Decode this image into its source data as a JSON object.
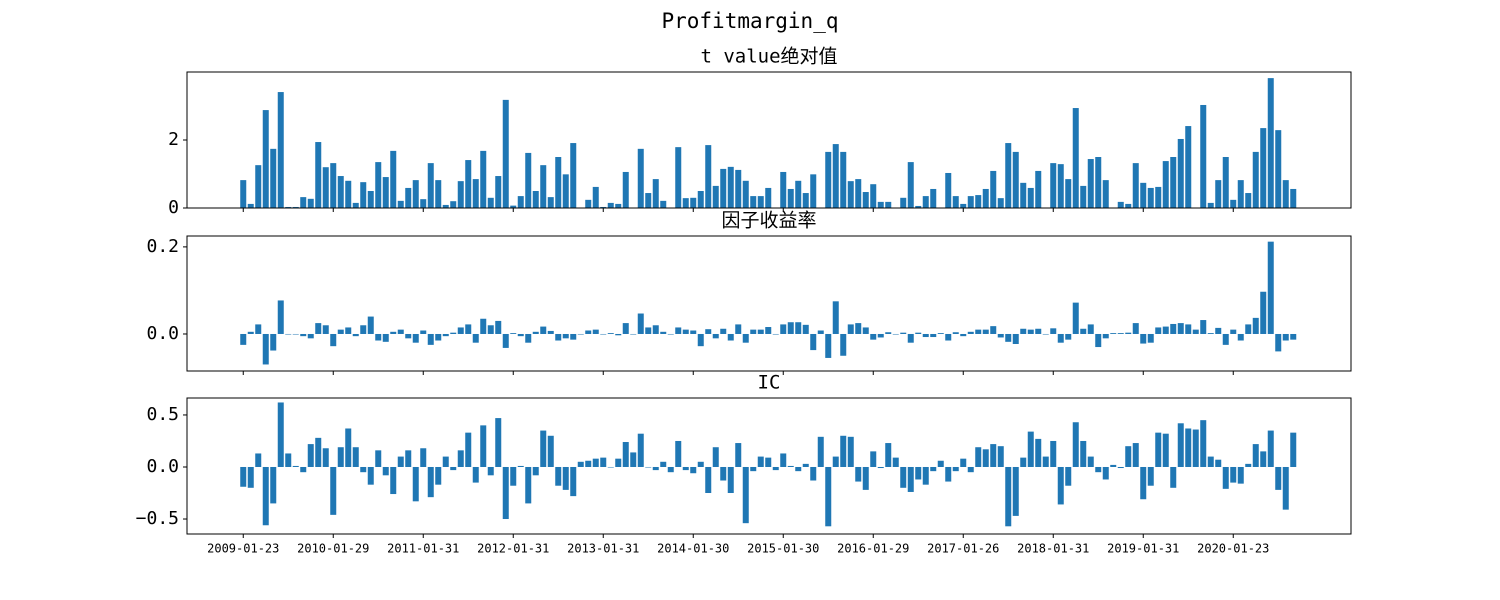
{
  "title": "Profitmargin_q",
  "chart_data": [
    {
      "type": "bar",
      "title": "t value绝对值",
      "color": "#1f77b4",
      "xlim": [
        -7.5,
        147.7
      ],
      "ylim": [
        0,
        4.0
      ],
      "yticks": [
        0,
        2
      ],
      "values": [
        0.82,
        0.12,
        1.26,
        2.88,
        1.74,
        3.41,
        0.03,
        0.03,
        0.32,
        0.27,
        1.94,
        1.2,
        1.32,
        0.94,
        0.8,
        0.15,
        0.76,
        0.5,
        1.35,
        0.91,
        1.68,
        0.21,
        0.59,
        0.82,
        0.26,
        1.32,
        0.82,
        0.09,
        0.2,
        0.79,
        1.41,
        0.85,
        1.68,
        0.3,
        0.94,
        3.18,
        0.07,
        0.35,
        1.62,
        0.5,
        1.26,
        0.32,
        1.5,
        0.99,
        1.91,
        0.01,
        0.24,
        0.62,
        0.03,
        0.15,
        0.12,
        1.06,
        0.01,
        1.74,
        0.44,
        0.85,
        0.21,
        0.01,
        1.79,
        0.29,
        0.3,
        0.5,
        1.85,
        0.65,
        1.15,
        1.21,
        1.12,
        0.8,
        0.35,
        0.35,
        0.59,
        0.01,
        1.06,
        0.56,
        0.8,
        0.44,
        0.99,
        0.01,
        1.65,
        1.88,
        1.65,
        0.79,
        0.85,
        0.47,
        0.7,
        0.18,
        0.18,
        0.01,
        0.3,
        1.35,
        0.06,
        0.35,
        0.56,
        0.01,
        1.03,
        0.35,
        0.12,
        0.35,
        0.38,
        0.56,
        1.09,
        0.29,
        1.91,
        1.65,
        0.74,
        0.59,
        1.09,
        0.01,
        1.32,
        1.29,
        0.85,
        2.94,
        0.65,
        1.44,
        1.5,
        0.82,
        0.01,
        0.18,
        0.12,
        1.32,
        0.74,
        0.59,
        0.62,
        1.38,
        1.5,
        2.03,
        2.41,
        0.01,
        3.03,
        0.15,
        0.82,
        1.5,
        0.24,
        0.82,
        0.44,
        1.65,
        2.35,
        3.82,
        2.29,
        0.82,
        0.56
      ]
    },
    {
      "type": "bar",
      "title": "因子收益率",
      "color": "#1f77b4",
      "xlim": [
        -7.5,
        147.7
      ],
      "ylim": [
        -0.085,
        0.225
      ],
      "yticks": [
        {
          "value": 0,
          "label": "0.0"
        },
        0.2
      ],
      "values": [
        -0.025,
        0.005,
        0.022,
        -0.07,
        -0.038,
        0.077,
        0,
        0,
        -0.005,
        -0.01,
        0.025,
        0.02,
        -0.028,
        0.01,
        0.015,
        -0.005,
        0.02,
        0.04,
        -0.015,
        -0.018,
        0.005,
        0.01,
        -0.01,
        -0.02,
        0.008,
        -0.025,
        -0.015,
        -0.005,
        0.003,
        0.015,
        0.022,
        -0.02,
        0.035,
        0.02,
        0.03,
        -0.032,
        0.002,
        -0.005,
        -0.02,
        0.005,
        0.017,
        0.007,
        -0.015,
        -0.01,
        -0.013,
        0,
        0.008,
        0.01,
        0,
        0.002,
        -0.003,
        0.025,
        0,
        0.047,
        0.015,
        0.02,
        0.005,
        0,
        0.015,
        0.01,
        0.008,
        -0.028,
        0.011,
        -0.01,
        0.012,
        -0.015,
        0.022,
        -0.02,
        0.01,
        0.01,
        0.016,
        0,
        0.022,
        0.027,
        0.027,
        0.021,
        -0.037,
        0.008,
        -0.055,
        0.075,
        -0.05,
        0.022,
        0.025,
        0.015,
        -0.013,
        -0.008,
        0.004,
        0,
        0.003,
        -0.02,
        0.003,
        -0.007,
        -0.007,
        0.002,
        -0.015,
        0.004,
        -0.005,
        0.005,
        0.01,
        0.01,
        0.018,
        -0.008,
        -0.018,
        -0.023,
        0.012,
        0.01,
        0.012,
        0,
        0.013,
        -0.02,
        -0.013,
        0.072,
        0.012,
        0.022,
        -0.03,
        -0.01,
        0.002,
        0.002,
        0.003,
        0.025,
        -0.022,
        -0.02,
        0.015,
        0.017,
        0.023,
        0.025,
        0.022,
        0.01,
        0.032,
        0.002,
        0.014,
        -0.025,
        0.01,
        -0.015,
        0.022,
        0.037,
        0.097,
        0.212,
        -0.04,
        -0.015,
        -0.013
      ]
    },
    {
      "type": "bar",
      "title": "IC",
      "color": "#1f77b4",
      "xlim": [
        -7.5,
        147.7
      ],
      "ylim": [
        -0.644,
        0.663
      ],
      "yticks": [
        {
          "value": -0.5,
          "label": "−0.5"
        },
        {
          "value": 0,
          "label": "0.0"
        },
        0.5
      ],
      "categories": [
        "2009-01-23",
        null,
        null,
        null,
        null,
        null,
        null,
        null,
        null,
        null,
        null,
        null,
        "2010-01-29",
        null,
        null,
        null,
        null,
        null,
        null,
        null,
        null,
        null,
        null,
        null,
        "2011-01-31",
        null,
        null,
        null,
        null,
        null,
        null,
        null,
        null,
        null,
        null,
        null,
        "2012-01-31",
        null,
        null,
        null,
        null,
        null,
        null,
        null,
        null,
        null,
        null,
        null,
        "2013-01-31",
        null,
        null,
        null,
        null,
        null,
        null,
        null,
        null,
        null,
        null,
        null,
        "2014-01-30",
        null,
        null,
        null,
        null,
        null,
        null,
        null,
        null,
        null,
        null,
        null,
        "2015-01-30",
        null,
        null,
        null,
        null,
        null,
        null,
        null,
        null,
        null,
        null,
        null,
        "2016-01-29",
        null,
        null,
        null,
        null,
        null,
        null,
        null,
        null,
        null,
        null,
        null,
        "2017-01-26",
        null,
        null,
        null,
        null,
        null,
        null,
        null,
        null,
        null,
        null,
        null,
        "2018-01-31",
        null,
        null,
        null,
        null,
        null,
        null,
        null,
        null,
        null,
        null,
        null,
        "2019-01-31",
        null,
        null,
        null,
        null,
        null,
        null,
        null,
        null,
        null,
        null,
        null,
        "2020-01-23",
        null,
        null,
        null,
        null,
        null,
        null,
        null,
        null
      ],
      "values": [
        -0.19,
        -0.2,
        0.13,
        -0.56,
        -0.35,
        0.62,
        0.13,
        0.01,
        -0.05,
        0.22,
        0.28,
        0.18,
        -0.46,
        0.19,
        0.37,
        0.19,
        -0.05,
        -0.17,
        0.16,
        -0.08,
        -0.26,
        0.1,
        0.16,
        -0.33,
        0.18,
        -0.29,
        -0.17,
        0.1,
        -0.03,
        0.16,
        0.33,
        -0.15,
        0.4,
        -0.08,
        0.47,
        -0.5,
        -0.18,
        0.01,
        -0.35,
        -0.08,
        0.35,
        0.3,
        -0.18,
        -0.22,
        -0.28,
        0.05,
        0.06,
        0.08,
        0.09,
        0,
        0.08,
        0.24,
        0.14,
        0.32,
        0,
        -0.03,
        0.05,
        -0.05,
        0.25,
        -0.03,
        -0.06,
        0.05,
        -0.25,
        0.19,
        -0.13,
        -0.25,
        0.23,
        -0.54,
        -0.04,
        0.1,
        0.09,
        -0.03,
        0.13,
        0.01,
        -0.04,
        0.03,
        -0.13,
        0.29,
        -0.57,
        0.1,
        0.3,
        0.29,
        -0.14,
        -0.22,
        0.15,
        -0.01,
        0.23,
        0.09,
        -0.2,
        -0.24,
        -0.12,
        -0.17,
        -0.04,
        0.06,
        -0.14,
        -0.04,
        0.08,
        -0.05,
        0.19,
        0.17,
        0.22,
        0.2,
        -0.57,
        -0.47,
        0.09,
        0.34,
        0.27,
        0.1,
        0.25,
        -0.36,
        -0.18,
        0.43,
        0.25,
        0.1,
        -0.05,
        -0.12,
        0.02,
        -0.01,
        0.2,
        0.23,
        -0.31,
        -0.18,
        0.33,
        0.32,
        -0.2,
        0.42,
        0.37,
        0.36,
        0.45,
        0.1,
        0.07,
        -0.21,
        -0.15,
        -0.16,
        0.03,
        0.22,
        0.15,
        0.35,
        -0.22,
        -0.41,
        0.33
      ]
    }
  ]
}
